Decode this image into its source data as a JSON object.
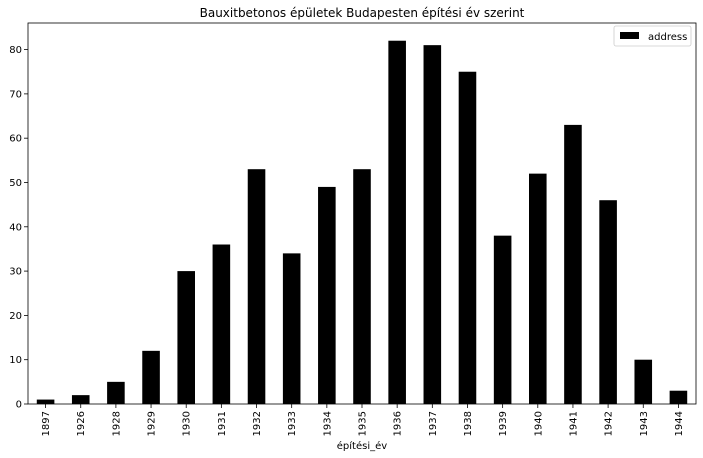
{
  "chart_data": {
    "type": "bar",
    "title": "Bauxitbetonos épületek Budapesten építési év szerint",
    "xlabel": "építési_év",
    "ylabel": "",
    "categories": [
      "1897",
      "1926",
      "1928",
      "1929",
      "1930",
      "1931",
      "1932",
      "1933",
      "1934",
      "1935",
      "1936",
      "1937",
      "1938",
      "1939",
      "1940",
      "1941",
      "1942",
      "1943",
      "1944"
    ],
    "series": [
      {
        "name": "address",
        "values": [
          1,
          2,
          5,
          12,
          30,
          36,
          53,
          34,
          49,
          53,
          82,
          81,
          75,
          38,
          52,
          63,
          46,
          10,
          3
        ],
        "color": "#000000"
      }
    ],
    "ylim": [
      0,
      86
    ],
    "yticks": [
      0,
      10,
      20,
      30,
      40,
      50,
      60,
      70,
      80
    ],
    "grid": false,
    "legend": "top-right"
  }
}
